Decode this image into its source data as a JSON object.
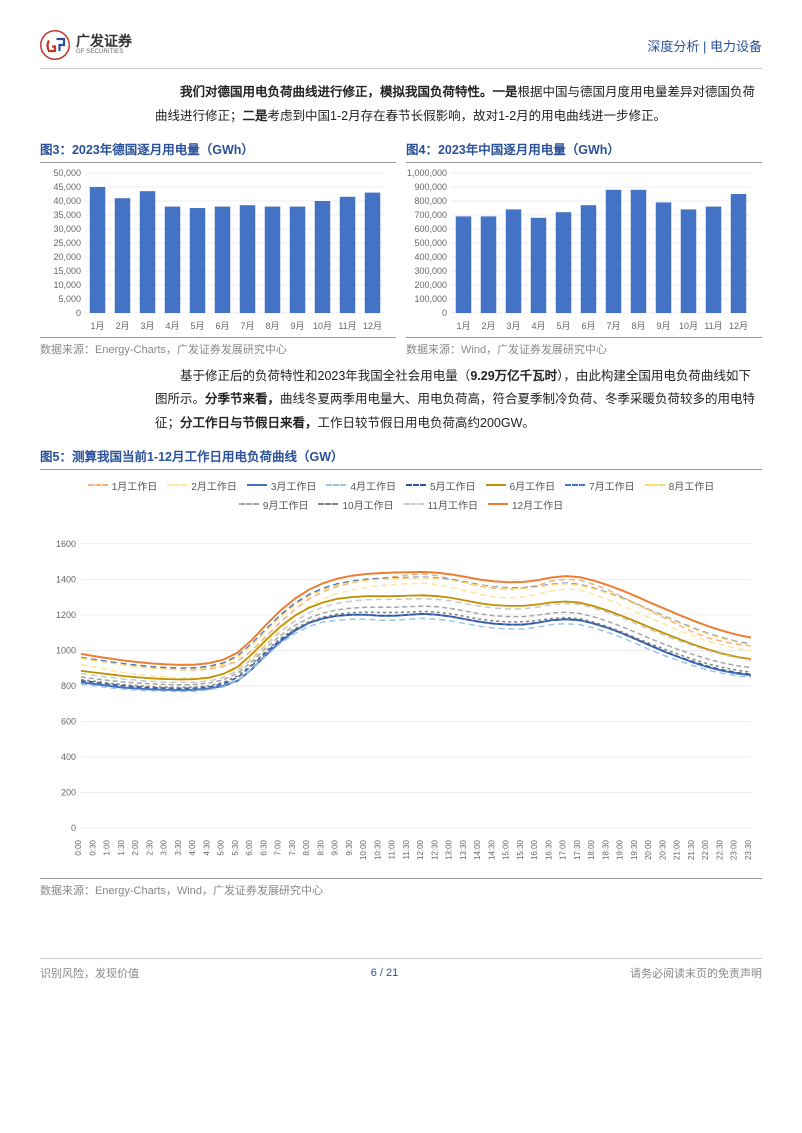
{
  "header": {
    "logo_cn": "广发证券",
    "logo_en": "GF SECURITIES",
    "category": "深度分析 | 电力设备"
  },
  "para1": {
    "bold1": "我们对德国用电负荷曲线进行修正，模拟我国负荷特性。一是",
    "t1": "根据中国与德国月度用电量差异对德国负荷曲线进行修正；",
    "bold2": "二是",
    "t2": "考虑到中国1-2月存在春节长假影响，故对1-2月的用电曲线进一步修正。",
    "bold3": "",
    "t3": ""
  },
  "para2": {
    "t1": "基于修正后的负荷特性和2023年我国全社会用电量（",
    "bold1": "9.29万亿千瓦时",
    "t2": "），由此构建全国用电负荷曲线如下图所示。",
    "bold2": "分季节来看，",
    "t3": "曲线冬夏两季用电量大、用电负荷高，符合夏季制冷负荷、冬季采暖负荷较多的用电特征；",
    "bold3": "分工作日与节假日来看，",
    "t4": "工作日较节假日用电负荷高约200GW。"
  },
  "chart3": {
    "type": "bar",
    "title": "图3：2023年德国逐月用电量（GWh）",
    "source": "数据来源：Energy-Charts，广发证券发展研究中心",
    "categories": [
      "1月",
      "2月",
      "3月",
      "4月",
      "5月",
      "6月",
      "7月",
      "8月",
      "9月",
      "10月",
      "11月",
      "12月"
    ],
    "values": [
      45000,
      41000,
      43500,
      38000,
      37500,
      38000,
      38500,
      38000,
      38000,
      40000,
      41500,
      43000
    ],
    "ylim": [
      0,
      50000
    ],
    "ytick_step": 5000,
    "bar_color": "#4472c4",
    "grid_color": "#d9d9d9",
    "tick_fontsize": 9,
    "background_color": "#ffffff"
  },
  "chart4": {
    "type": "bar",
    "title": "图4：2023年中国逐月用电量（GWh）",
    "source": "数据来源：Wind，广发证券发展研究中心",
    "categories": [
      "1月",
      "2月",
      "3月",
      "4月",
      "5月",
      "6月",
      "7月",
      "8月",
      "9月",
      "10月",
      "11月",
      "12月"
    ],
    "values": [
      690000,
      690000,
      740000,
      680000,
      720000,
      770000,
      880000,
      880000,
      790000,
      740000,
      760000,
      850000
    ],
    "ylim": [
      0,
      1000000
    ],
    "ytick_step": 100000,
    "bar_color": "#4472c4",
    "grid_color": "#d9d9d9",
    "tick_fontsize": 9,
    "background_color": "#ffffff"
  },
  "chart5": {
    "type": "line",
    "title": "图5：测算我国当前1-12月工作日用电负荷曲线（GW）",
    "source": "数据来源：Energy-Charts，Wind，广发证券发展研究中心",
    "ylim": [
      0,
      1700
    ],
    "yticks": [
      0,
      200,
      400,
      600,
      800,
      1000,
      1200,
      1400,
      1600
    ],
    "x_categories": [
      "0:00",
      "0:30",
      "1:00",
      "1:30",
      "2:00",
      "2:30",
      "3:00",
      "3:30",
      "4:00",
      "4:30",
      "5:00",
      "5:30",
      "6:00",
      "6:30",
      "7:00",
      "7:30",
      "8:00",
      "8:30",
      "9:00",
      "9:30",
      "10:00",
      "10:30",
      "11:00",
      "11:30",
      "12:00",
      "12:30",
      "13:00",
      "13:30",
      "14:00",
      "14:30",
      "15:00",
      "15:30",
      "16:00",
      "16:30",
      "17:00",
      "17:30",
      "18:00",
      "18:30",
      "19:00",
      "19:30",
      "20:00",
      "20:30",
      "21:00",
      "21:30",
      "22:00",
      "22:30",
      "23:00",
      "23:30"
    ],
    "grid_color": "#e6e6e6",
    "tick_fontsize": 9,
    "background_color": "#ffffff",
    "series": [
      {
        "label": "1月工作日",
        "color": "#f4b183",
        "dash": "6 4",
        "width": 1.5,
        "data": [
          960,
          945,
          930,
          920,
          910,
          900,
          895,
          890,
          890,
          895,
          910,
          940,
          1000,
          1080,
          1160,
          1230,
          1290,
          1330,
          1360,
          1380,
          1395,
          1405,
          1415,
          1425,
          1430,
          1420,
          1400,
          1380,
          1360,
          1350,
          1345,
          1350,
          1365,
          1390,
          1400,
          1395,
          1370,
          1340,
          1300,
          1260,
          1220,
          1180,
          1140,
          1100,
          1070,
          1050,
          1035,
          1025
        ]
      },
      {
        "label": "2月工作日",
        "color": "#ffe699",
        "dash": "6 4",
        "width": 1.5,
        "data": [
          920,
          905,
          890,
          875,
          865,
          855,
          850,
          845,
          845,
          850,
          865,
          895,
          960,
          1040,
          1120,
          1190,
          1250,
          1290,
          1320,
          1340,
          1355,
          1365,
          1370,
          1375,
          1378,
          1370,
          1355,
          1335,
          1315,
          1300,
          1295,
          1300,
          1315,
          1335,
          1345,
          1340,
          1315,
          1285,
          1250,
          1215,
          1180,
          1145,
          1110,
          1080,
          1050,
          1030,
          1010,
          1000
        ]
      },
      {
        "label": "3月工作日",
        "color": "#4472c4",
        "dash": "",
        "width": 2,
        "data": [
          820,
          810,
          800,
          790,
          785,
          780,
          778,
          776,
          778,
          785,
          800,
          830,
          895,
          975,
          1050,
          1110,
          1155,
          1180,
          1195,
          1200,
          1200,
          1195,
          1195,
          1200,
          1205,
          1200,
          1190,
          1175,
          1160,
          1150,
          1145,
          1145,
          1155,
          1170,
          1175,
          1170,
          1150,
          1125,
          1095,
          1060,
          1025,
          990,
          960,
          930,
          905,
          885,
          870,
          860
        ]
      },
      {
        "label": "4月工作日",
        "color": "#9dc3e6",
        "dash": "6 4",
        "width": 1.5,
        "data": [
          810,
          800,
          790,
          782,
          776,
          772,
          770,
          768,
          770,
          778,
          795,
          830,
          895,
          970,
          1040,
          1095,
          1135,
          1160,
          1170,
          1175,
          1175,
          1170,
          1170,
          1175,
          1180,
          1175,
          1165,
          1150,
          1135,
          1125,
          1120,
          1120,
          1130,
          1145,
          1150,
          1145,
          1125,
          1100,
          1070,
          1035,
          1000,
          968,
          940,
          912,
          888,
          870,
          856,
          848
        ]
      },
      {
        "label": "5月工作日",
        "color": "#2f5597",
        "dash": "5 3",
        "width": 1.5,
        "data": [
          830,
          820,
          810,
          800,
          795,
          790,
          788,
          786,
          788,
          795,
          812,
          848,
          915,
          990,
          1060,
          1115,
          1155,
          1180,
          1195,
          1200,
          1200,
          1195,
          1195,
          1200,
          1205,
          1200,
          1190,
          1175,
          1160,
          1150,
          1145,
          1145,
          1155,
          1170,
          1175,
          1170,
          1150,
          1125,
          1095,
          1060,
          1025,
          992,
          962,
          935,
          910,
          890,
          875,
          865
        ]
      },
      {
        "label": "6月工作日",
        "color": "#bf9000",
        "dash": "",
        "width": 1.8,
        "data": [
          885,
          875,
          865,
          855,
          848,
          842,
          838,
          836,
          838,
          846,
          868,
          908,
          980,
          1060,
          1135,
          1195,
          1240,
          1270,
          1290,
          1300,
          1305,
          1305,
          1305,
          1308,
          1310,
          1305,
          1295,
          1280,
          1265,
          1255,
          1250,
          1250,
          1258,
          1270,
          1275,
          1268,
          1248,
          1222,
          1192,
          1160,
          1126,
          1094,
          1062,
          1032,
          1005,
          982,
          963,
          950
        ]
      },
      {
        "label": "7月工作日",
        "color": "#4472c4",
        "dash": "6 4",
        "width": 1.5,
        "data": [
          960,
          948,
          936,
          925,
          916,
          908,
          903,
          900,
          902,
          910,
          930,
          970,
          1040,
          1120,
          1200,
          1265,
          1315,
          1350,
          1375,
          1390,
          1400,
          1405,
          1408,
          1410,
          1412,
          1408,
          1398,
          1384,
          1368,
          1358,
          1352,
          1352,
          1360,
          1372,
          1378,
          1370,
          1350,
          1324,
          1294,
          1260,
          1224,
          1190,
          1156,
          1124,
          1095,
          1070,
          1050,
          1035
        ]
      },
      {
        "label": "8月工作日",
        "color": "#ffd966",
        "dash": "6 4",
        "width": 1.5,
        "data": [
          955,
          942,
          930,
          918,
          908,
          900,
          895,
          892,
          894,
          902,
          922,
          962,
          1032,
          1112,
          1190,
          1255,
          1306,
          1342,
          1368,
          1384,
          1394,
          1400,
          1404,
          1407,
          1409,
          1405,
          1395,
          1380,
          1365,
          1355,
          1349,
          1349,
          1357,
          1369,
          1375,
          1367,
          1347,
          1321,
          1291,
          1257,
          1221,
          1187,
          1153,
          1121,
          1092,
          1067,
          1047,
          1032
        ]
      },
      {
        "label": "9月工作日",
        "color": "#a6a6a6",
        "dash": "5 3",
        "width": 1.5,
        "data": [
          850,
          840,
          830,
          822,
          816,
          811,
          808,
          806,
          808,
          816,
          835,
          872,
          938,
          1015,
          1085,
          1140,
          1182,
          1210,
          1228,
          1238,
          1243,
          1243,
          1243,
          1246,
          1249,
          1245,
          1235,
          1220,
          1205,
          1195,
          1190,
          1190,
          1198,
          1210,
          1215,
          1208,
          1188,
          1162,
          1132,
          1098,
          1064,
          1032,
          1002,
          975,
          950,
          930,
          914,
          903
        ]
      },
      {
        "label": "10月工作日",
        "color": "#808080",
        "dash": "3 3",
        "width": 1.5,
        "data": [
          835,
          825,
          815,
          807,
          801,
          796,
          793,
          791,
          793,
          801,
          820,
          857,
          922,
          998,
          1068,
          1122,
          1162,
          1188,
          1204,
          1212,
          1215,
          1213,
          1213,
          1216,
          1219,
          1215,
          1205,
          1190,
          1175,
          1165,
          1160,
          1160,
          1168,
          1180,
          1185,
          1178,
          1158,
          1132,
          1102,
          1068,
          1035,
          1004,
          975,
          948,
          924,
          904,
          888,
          877
        ]
      },
      {
        "label": "11月工作日",
        "color": "#c9c9c9",
        "dash": "6 4",
        "width": 1.5,
        "data": [
          870,
          858,
          848,
          838,
          831,
          825,
          821,
          819,
          821,
          828,
          848,
          886,
          952,
          1030,
          1105,
          1165,
          1212,
          1244,
          1265,
          1278,
          1285,
          1287,
          1287,
          1289,
          1291,
          1287,
          1277,
          1262,
          1248,
          1238,
          1233,
          1234,
          1243,
          1258,
          1264,
          1258,
          1238,
          1212,
          1182,
          1148,
          1114,
          1082,
          1052,
          1024,
          998,
          976,
          958,
          945
        ]
      },
      {
        "label": "12月工作日",
        "color": "#ed7d31",
        "dash": "",
        "width": 2,
        "data": [
          980,
          966,
          954,
          943,
          934,
          926,
          921,
          918,
          920,
          928,
          948,
          988,
          1060,
          1145,
          1225,
          1290,
          1342,
          1378,
          1404,
          1420,
          1430,
          1435,
          1438,
          1440,
          1441,
          1437,
          1427,
          1413,
          1398,
          1388,
          1383,
          1385,
          1395,
          1410,
          1418,
          1412,
          1392,
          1366,
          1336,
          1302,
          1266,
          1232,
          1198,
          1166,
          1136,
          1110,
          1088,
          1072
        ]
      }
    ]
  },
  "footer": {
    "left": "识别风险，发现价值",
    "page": "6 / 21",
    "right": "请务必阅读末页的免责声明"
  }
}
